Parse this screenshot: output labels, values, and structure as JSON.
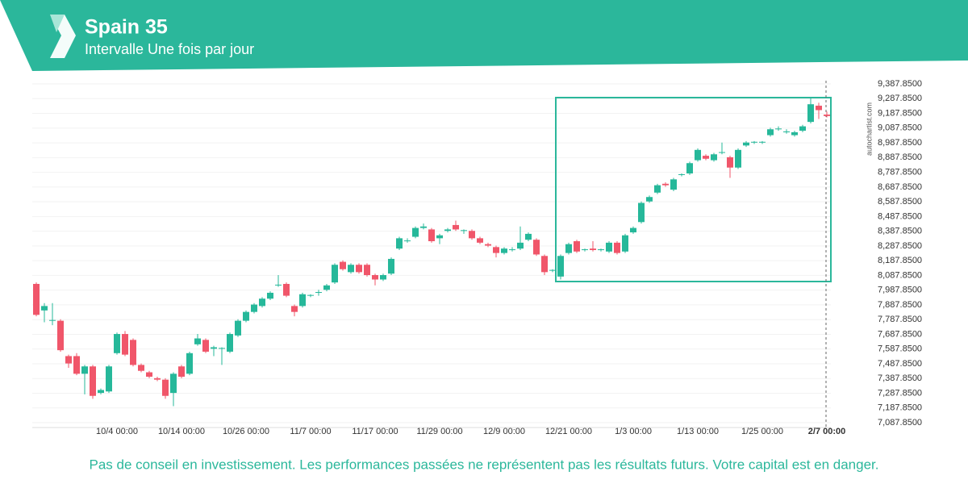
{
  "header": {
    "title": "Spain 35",
    "subtitle": "Intervalle Une fois par jour"
  },
  "chart_data": {
    "type": "candlestick",
    "watermark": "autochartist.com",
    "up_color": "#26b89a",
    "down_color": "#f0566a",
    "categories": [
      null,
      null,
      null,
      null,
      null,
      null,
      null,
      null,
      null,
      null,
      "10/4 00:00",
      null,
      null,
      null,
      null,
      null,
      null,
      null,
      "10/14 00:00",
      null,
      null,
      null,
      null,
      null,
      null,
      null,
      "10/26 00:00",
      null,
      null,
      null,
      null,
      null,
      null,
      null,
      "11/7 00:00",
      null,
      null,
      null,
      null,
      null,
      null,
      null,
      "11/17 00:00",
      null,
      null,
      null,
      null,
      null,
      null,
      null,
      "11/29 00:00",
      null,
      null,
      null,
      null,
      null,
      null,
      null,
      "12/9 00:00",
      null,
      null,
      null,
      null,
      null,
      null,
      null,
      "12/21 00:00",
      null,
      null,
      null,
      null,
      null,
      null,
      null,
      "1/3 00:00",
      null,
      null,
      null,
      null,
      null,
      null,
      null,
      "1/13 00:00",
      null,
      null,
      null,
      null,
      null,
      null,
      null,
      "1/25 00:00",
      null,
      null,
      null,
      null,
      null,
      null,
      null,
      "2/7 00:00"
    ],
    "open": [
      8030,
      7850,
      7780,
      7780,
      7540,
      7540,
      7420,
      7470,
      7290,
      7300,
      7560,
      7690,
      7650,
      7480,
      7430,
      7390,
      7380,
      7290,
      7470,
      7420,
      7620,
      7650,
      7590,
      7590,
      7570,
      7680,
      7780,
      7840,
      7880,
      7930,
      8020,
      8030,
      7880,
      7880,
      7950,
      7970,
      7990,
      8040,
      8180,
      8110,
      8160,
      8160,
      8090,
      8060,
      8100,
      8270,
      8320,
      8350,
      8410,
      8400,
      8340,
      8390,
      8430,
      8390,
      8390,
      8340,
      8300,
      8280,
      8240,
      8260,
      8270,
      8330,
      8330,
      8220,
      8120,
      8080,
      8240,
      8320,
      8260,
      8270,
      8260,
      8250,
      8310,
      8250,
      8380,
      8450,
      8590,
      8650,
      8710,
      8670,
      8770,
      8780,
      8870,
      8900,
      8870,
      8920,
      8890,
      8820,
      8970,
      8990,
      8990,
      9040,
      9080,
      9060,
      9040,
      9070,
      9130,
      9240,
      9180
    ],
    "high": [
      8040,
      7900,
      7900,
      7790,
      7550,
      7560,
      7480,
      7480,
      7320,
      7480,
      7700,
      7710,
      7660,
      7490,
      7440,
      7400,
      7390,
      7430,
      7480,
      7570,
      7690,
      7660,
      7610,
      7600,
      7700,
      7790,
      7850,
      7900,
      7940,
      7980,
      8090,
      8040,
      7890,
      7970,
      7960,
      7990,
      8030,
      8170,
      8190,
      8170,
      8170,
      8170,
      8100,
      8100,
      8210,
      8350,
      8340,
      8420,
      8440,
      8410,
      8370,
      8410,
      8460,
      8400,
      8400,
      8350,
      8310,
      8290,
      8280,
      8280,
      8420,
      8380,
      8340,
      8230,
      8130,
      8230,
      8310,
      8330,
      8270,
      8320,
      8270,
      8320,
      8320,
      8370,
      8420,
      8590,
      8630,
      8710,
      8720,
      8750,
      8780,
      8860,
      8950,
      8910,
      8920,
      8990,
      8900,
      8950,
      9000,
      9000,
      9000,
      9090,
      9100,
      9080,
      9070,
      9110,
      9290,
      9260,
      9200
    ],
    "low": [
      7810,
      7770,
      7750,
      7570,
      7460,
      7410,
      7280,
      7250,
      7280,
      7290,
      7550,
      7540,
      7470,
      7430,
      7390,
      7370,
      7250,
      7200,
      7390,
      7410,
      7610,
      7560,
      7540,
      7480,
      7560,
      7670,
      7770,
      7830,
      7870,
      7920,
      8010,
      7940,
      7810,
      7870,
      7940,
      7950,
      7980,
      8030,
      8120,
      8100,
      8100,
      8080,
      8020,
      8050,
      8090,
      8260,
      8310,
      8340,
      8400,
      8310,
      8300,
      8380,
      8390,
      8370,
      8330,
      8300,
      8280,
      8210,
      8230,
      8250,
      8260,
      8320,
      8220,
      8090,
      8110,
      8060,
      8230,
      8240,
      8250,
      8250,
      8250,
      8240,
      8230,
      8240,
      8370,
      8440,
      8580,
      8640,
      8690,
      8660,
      8760,
      8770,
      8860,
      8870,
      8860,
      8910,
      8750,
      8810,
      8960,
      8980,
      8980,
      9030,
      9070,
      9050,
      9030,
      9060,
      9120,
      9150,
      9160
    ],
    "close": [
      7820,
      7880,
      7785,
      7580,
      7490,
      7420,
      7470,
      7270,
      7310,
      7470,
      7690,
      7550,
      7480,
      7440,
      7400,
      7380,
      7270,
      7420,
      7400,
      7560,
      7660,
      7570,
      7600,
      7595,
      7690,
      7780,
      7840,
      7890,
      7930,
      7970,
      8025,
      7950,
      7840,
      7960,
      7955,
      7975,
      8020,
      8160,
      8130,
      8160,
      8110,
      8090,
      8060,
      8090,
      8200,
      8340,
      8325,
      8410,
      8420,
      8320,
      8360,
      8400,
      8400,
      8395,
      8340,
      8310,
      8290,
      8240,
      8270,
      8265,
      8310,
      8370,
      8230,
      8110,
      8125,
      8220,
      8300,
      8250,
      8265,
      8260,
      8265,
      8310,
      8240,
      8360,
      8410,
      8580,
      8620,
      8700,
      8700,
      8740,
      8775,
      8850,
      8940,
      8880,
      8910,
      8925,
      8820,
      8940,
      8990,
      8995,
      8995,
      9080,
      9085,
      9065,
      9060,
      9100,
      9250,
      9210,
      9170
    ],
    "ylim": [
      7055,
      9410
    ],
    "yticks": [
      {
        "value": 7087.85,
        "label": "7,087.8500"
      },
      {
        "value": 7187.85,
        "label": "7,187.8500"
      },
      {
        "value": 7287.85,
        "label": "7,287.8500"
      },
      {
        "value": 7387.85,
        "label": "7,387.8500"
      },
      {
        "value": 7487.85,
        "label": "7,487.8500"
      },
      {
        "value": 7587.85,
        "label": "7,587.8500"
      },
      {
        "value": 7687.85,
        "label": "7,687.8500"
      },
      {
        "value": 7787.85,
        "label": "7,787.8500"
      },
      {
        "value": 7887.85,
        "label": "7,887.8500"
      },
      {
        "value": 7987.85,
        "label": "7,987.8500"
      },
      {
        "value": 8087.85,
        "label": "8,087.8500"
      },
      {
        "value": 8187.85,
        "label": "8,187.8500"
      },
      {
        "value": 8287.85,
        "label": "8,287.8500"
      },
      {
        "value": 8387.85,
        "label": "8,387.8500"
      },
      {
        "value": 8487.85,
        "label": "8,487.8500"
      },
      {
        "value": 8587.85,
        "label": "8,587.8500"
      },
      {
        "value": 8687.85,
        "label": "8,687.8500"
      },
      {
        "value": 8787.85,
        "label": "8,787.8500"
      },
      {
        "value": 8887.85,
        "label": "8,887.8500"
      },
      {
        "value": 8987.85,
        "label": "8,987.8500"
      },
      {
        "value": 9087.85,
        "label": "9,087.8500"
      },
      {
        "value": 9187.85,
        "label": "9,187.8500"
      },
      {
        "value": 9287.85,
        "label": "9,287.8500"
      },
      {
        "value": 9387.85,
        "label": "9,387.8500"
      }
    ],
    "grid": true
  },
  "footer": {
    "disclaimer": "Pas de conseil en investissement. Les performances passées ne représentent pas les résultats futurs. Votre capital est en danger."
  }
}
